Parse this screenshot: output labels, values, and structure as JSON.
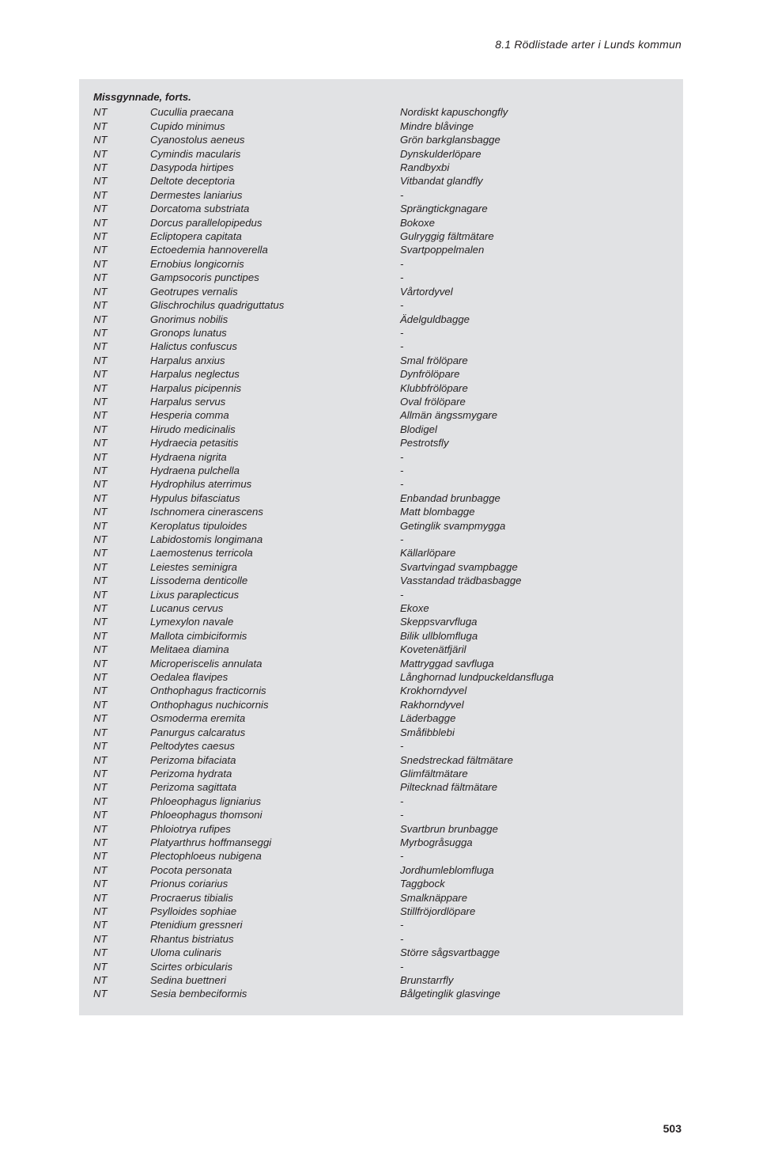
{
  "section_header": "8.1 Rödlistade arter i Lunds kommun",
  "block_title": "Missgynnade, forts.",
  "page_number": "503",
  "rows": [
    {
      "code": "NT",
      "sci": "Cucullia praecana",
      "name": "Nordiskt kapuschongfly"
    },
    {
      "code": "NT",
      "sci": "Cupido minimus",
      "name": "Mindre blåvinge"
    },
    {
      "code": "NT",
      "sci": "Cyanostolus aeneus",
      "name": "Grön barkglansbagge"
    },
    {
      "code": "NT",
      "sci": "Cymindis macularis",
      "name": "Dynskulderlöpare"
    },
    {
      "code": "NT",
      "sci": "Dasypoda hirtipes",
      "name": "Randbyxbi"
    },
    {
      "code": "NT",
      "sci": "Deltote deceptoria",
      "name": "Vitbandat glandfly"
    },
    {
      "code": "NT",
      "sci": "Dermestes laniarius",
      "name": "-"
    },
    {
      "code": "NT",
      "sci": "Dorcatoma substriata",
      "name": "Sprängtickgnagare"
    },
    {
      "code": "NT",
      "sci": "Dorcus parallelopipedus",
      "name": "Bokoxe"
    },
    {
      "code": "NT",
      "sci": "Ecliptopera capitata",
      "name": "Gulryggig fältmätare"
    },
    {
      "code": "NT",
      "sci": "Ectoedemia hannoverella",
      "name": "Svartpoppelmalen"
    },
    {
      "code": "NT",
      "sci": "Ernobius longicornis",
      "name": "-"
    },
    {
      "code": "NT",
      "sci": "Gampsocoris punctipes",
      "name": "-"
    },
    {
      "code": "NT",
      "sci": "Geotrupes vernalis",
      "name": "Vårtordyvel"
    },
    {
      "code": "NT",
      "sci": "Glischrochilus quadriguttatus",
      "name": "-"
    },
    {
      "code": "NT",
      "sci": "Gnorimus nobilis",
      "name": "Ädelguldbagge"
    },
    {
      "code": "NT",
      "sci": "Gronops lunatus",
      "name": "-"
    },
    {
      "code": "NT",
      "sci": "Halictus confuscus",
      "name": "-"
    },
    {
      "code": "NT",
      "sci": "Harpalus anxius",
      "name": "Smal frölöpare"
    },
    {
      "code": "NT",
      "sci": "Harpalus neglectus",
      "name": "Dynfrölöpare"
    },
    {
      "code": "NT",
      "sci": "Harpalus picipennis",
      "name": "Klubbfrölöpare"
    },
    {
      "code": "NT",
      "sci": "Harpalus servus",
      "name": "Oval frölöpare"
    },
    {
      "code": "NT",
      "sci": "Hesperia comma",
      "name": "Allmän ängssmygare"
    },
    {
      "code": "NT",
      "sci": "Hirudo medicinalis",
      "name": "Blodigel"
    },
    {
      "code": "NT",
      "sci": "Hydraecia petasitis",
      "name": "Pestrotsfly"
    },
    {
      "code": "NT",
      "sci": "Hydraena nigrita",
      "name": "-"
    },
    {
      "code": "NT",
      "sci": "Hydraena pulchella",
      "name": "-"
    },
    {
      "code": "NT",
      "sci": "Hydrophilus aterrimus",
      "name": "-"
    },
    {
      "code": "NT",
      "sci": "Hypulus bifasciatus",
      "name": "Enbandad brunbagge"
    },
    {
      "code": "NT",
      "sci": "Ischnomera cinerascens",
      "name": "Matt blombagge"
    },
    {
      "code": "NT",
      "sci": "Keroplatus tipuloides",
      "name": "Getinglik svampmygga"
    },
    {
      "code": "NT",
      "sci": "Labidostomis longimana",
      "name": "-"
    },
    {
      "code": "NT",
      "sci": "Laemostenus terricola",
      "name": "Källarlöpare"
    },
    {
      "code": "NT",
      "sci": "Leiestes seminigra",
      "name": "Svartvingad svampbagge"
    },
    {
      "code": "NT",
      "sci": "Lissodema denticolle",
      "name": "Vasstandad trädbasbagge"
    },
    {
      "code": "NT",
      "sci": "Lixus paraplecticus",
      "name": "-"
    },
    {
      "code": "NT",
      "sci": "Lucanus cervus",
      "name": "Ekoxe"
    },
    {
      "code": "NT",
      "sci": "Lymexylon navale",
      "name": "Skeppsvarvfluga"
    },
    {
      "code": "NT",
      "sci": "Mallota cimbiciformis",
      "name": "Bilik ullblomfluga"
    },
    {
      "code": "NT",
      "sci": "Melitaea diamina",
      "name": "Kovetenätfjäril"
    },
    {
      "code": "NT",
      "sci": "Microperiscelis annulata",
      "name": "Mattryggad savfluga"
    },
    {
      "code": "NT",
      "sci": "Oedalea flavipes",
      "name": "Långhornad lundpuckeldansfluga"
    },
    {
      "code": "NT",
      "sci": "Onthophagus fracticornis",
      "name": "Krokhorndyvel"
    },
    {
      "code": "NT",
      "sci": "Onthophagus nuchicornis",
      "name": "Rakhorndyvel"
    },
    {
      "code": "NT",
      "sci": "Osmoderma eremita",
      "name": "Läderbagge"
    },
    {
      "code": "NT",
      "sci": "Panurgus calcaratus",
      "name": "Småfibblebi"
    },
    {
      "code": "NT",
      "sci": "Peltodytes caesus",
      "name": "-"
    },
    {
      "code": "NT",
      "sci": "Perizoma bifaciata",
      "name": "Snedstreckad fältmätare"
    },
    {
      "code": "NT",
      "sci": "Perizoma hydrata",
      "name": "Glimfältmätare"
    },
    {
      "code": "NT",
      "sci": "Perizoma sagittata",
      "name": "Piltecknad fältmätare"
    },
    {
      "code": "NT",
      "sci": "Phloeophagus ligniarius",
      "name": "-"
    },
    {
      "code": "NT",
      "sci": "Phloeophagus thomsoni",
      "name": "-"
    },
    {
      "code": "NT",
      "sci": "Phloiotrya rufipes",
      "name": "Svartbrun brunbagge"
    },
    {
      "code": "NT",
      "sci": "Platyarthrus hoffmanseggi",
      "name": "Myrbogråsugga"
    },
    {
      "code": "NT",
      "sci": "Plectophloeus nubigena",
      "name": "-"
    },
    {
      "code": "NT",
      "sci": "Pocota personata",
      "name": "Jordhumleblomfluga"
    },
    {
      "code": "NT",
      "sci": "Prionus coriarius",
      "name": "Taggbock"
    },
    {
      "code": "NT",
      "sci": "Procraerus tibialis",
      "name": "Smalknäppare"
    },
    {
      "code": "NT",
      "sci": "Psylloides sophiae",
      "name": "Stillfröjordlöpare"
    },
    {
      "code": "NT",
      "sci": "Ptenidium gressneri",
      "name": "-"
    },
    {
      "code": "NT",
      "sci": "Rhantus bistriatus",
      "name": "-"
    },
    {
      "code": "NT",
      "sci": "Uloma culinaris",
      "name": "Större sågsvartbagge"
    },
    {
      "code": "NT",
      "sci": "Scirtes orbicularis",
      "name": "-"
    },
    {
      "code": "NT",
      "sci": "Sedina buettneri",
      "name": "Brunstarrfly"
    },
    {
      "code": "NT",
      "sci": "Sesia bembeciformis",
      "name": "Bålgetinglik glasvinge"
    }
  ]
}
